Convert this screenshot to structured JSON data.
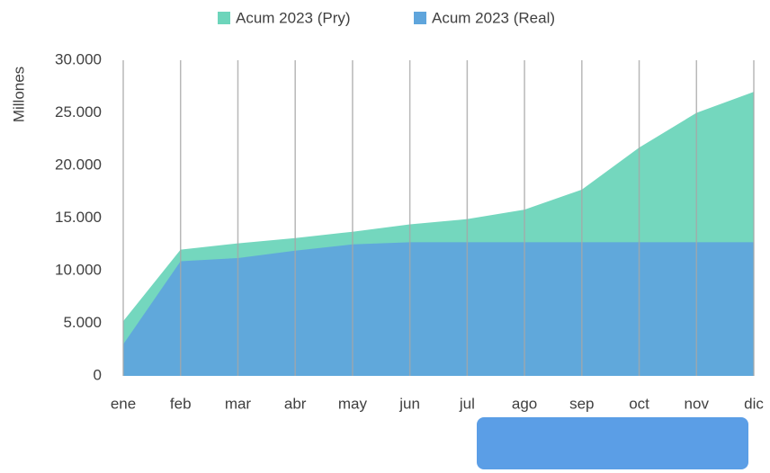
{
  "chart_data": {
    "type": "area",
    "y_label": "Millones",
    "categories": [
      "ene",
      "feb",
      "mar",
      "abr",
      "may",
      "jun",
      "jul",
      "ago",
      "sep",
      "oct",
      "nov",
      "dic"
    ],
    "series": [
      {
        "name": "Acum 2023 (Pry)",
        "color": "#6dd5bb",
        "values": [
          5200,
          12000,
          12600,
          13100,
          13700,
          14400,
          14900,
          15800,
          17700,
          21700,
          25000,
          27000
        ]
      },
      {
        "name": "Acum 2023 (Real)",
        "color": "#5fa5dc",
        "values": [
          3000,
          10900,
          11200,
          11900,
          12500,
          12700,
          12700,
          12700,
          12700,
          12700,
          12700,
          12700
        ]
      }
    ],
    "ylim": [
      0,
      30000
    ],
    "yticks": [
      0,
      {
        "value": 5000,
        "label": "5.000"
      },
      {
        "value": 10000,
        "label": "10.000"
      },
      {
        "value": 15000,
        "label": "15.000"
      },
      {
        "value": 20000,
        "label": "20.000"
      },
      {
        "value": 25000,
        "label": "25.000"
      },
      {
        "value": 30000,
        "label": "30.000"
      }
    ],
    "grid": "x",
    "legend": "top"
  }
}
